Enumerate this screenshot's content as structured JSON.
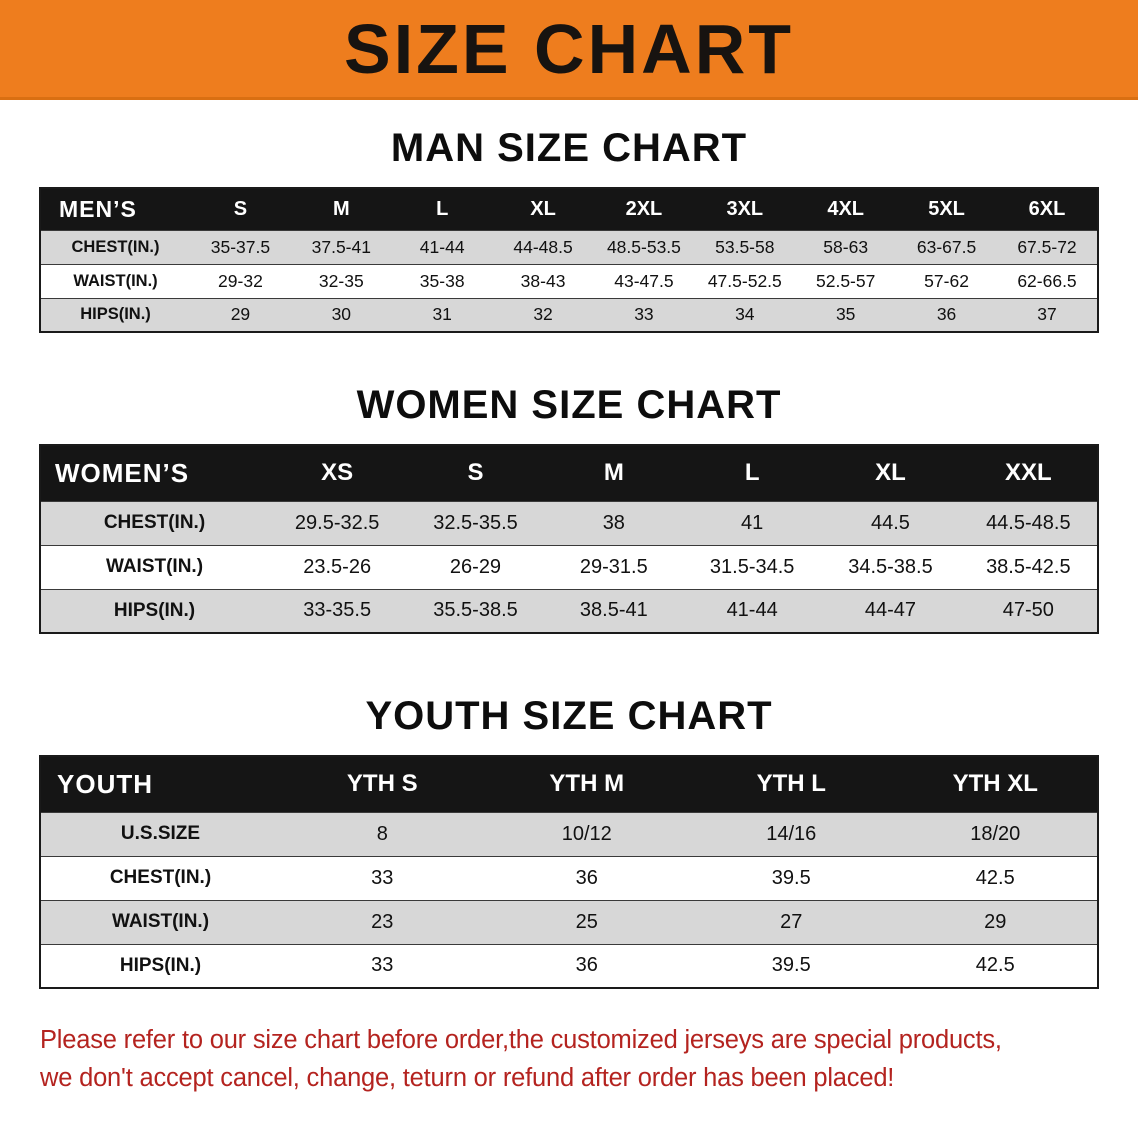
{
  "banner": {
    "title": "SIZE CHART",
    "background": "#ee7d1e",
    "text_color": "#171310"
  },
  "colors": {
    "table_header_bg": "#151515",
    "row_shaded": "#d7d7d7",
    "footer_text": "#b4231f"
  },
  "sections": [
    {
      "key": "men",
      "title": "MAN SIZE CHART",
      "header": [
        "MEN’S",
        "S",
        "M",
        "L",
        "XL",
        "2XL",
        "3XL",
        "4XL",
        "5XL",
        "6XL"
      ],
      "rows": [
        [
          "CHEST(IN.)",
          "35-37.5",
          "37.5-41",
          "41-44",
          "44-48.5",
          "48.5-53.5",
          "53.5-58",
          "58-63",
          "63-67.5",
          "67.5-72"
        ],
        [
          "WAIST(IN.)",
          "29-32",
          "32-35",
          "35-38",
          "38-43",
          "43-47.5",
          "47.5-52.5",
          "52.5-57",
          "57-62",
          "62-66.5"
        ],
        [
          "HIPS(IN.)",
          "29",
          "30",
          "31",
          "32",
          "33",
          "34",
          "35",
          "36",
          "37"
        ]
      ]
    },
    {
      "key": "women",
      "title": "WOMEN SIZE CHART",
      "header": [
        "WOMEN’S",
        "XS",
        "S",
        "M",
        "L",
        "XL",
        "XXL"
      ],
      "rows": [
        [
          "CHEST(IN.)",
          "29.5-32.5",
          "32.5-35.5",
          "38",
          "41",
          "44.5",
          "44.5-48.5"
        ],
        [
          "WAIST(IN.)",
          "23.5-26",
          "26-29",
          "29-31.5",
          "31.5-34.5",
          "34.5-38.5",
          "38.5-42.5"
        ],
        [
          "HIPS(IN.)",
          "33-35.5",
          "35.5-38.5",
          "38.5-41",
          "41-44",
          "44-47",
          "47-50"
        ]
      ]
    },
    {
      "key": "youth",
      "title": "YOUTH SIZE CHART",
      "header": [
        "YOUTH",
        "YTH S",
        "YTH M",
        "YTH L",
        "YTH XL"
      ],
      "rows": [
        [
          "U.S.SIZE",
          "8",
          "10/12",
          "14/16",
          "18/20"
        ],
        [
          "CHEST(IN.)",
          "33",
          "36",
          "39.5",
          "42.5"
        ],
        [
          "WAIST(IN.)",
          "23",
          "25",
          "27",
          "29"
        ],
        [
          "HIPS(IN.)",
          "33",
          "36",
          "39.5",
          "42.5"
        ]
      ]
    }
  ],
  "footer": {
    "color": "#b4231f",
    "lines": [
      "Please refer to our size chart before order,the customized jerseys are special products,",
      "we don't accept cancel, change, teturn or refund after order has been placed!"
    ]
  }
}
